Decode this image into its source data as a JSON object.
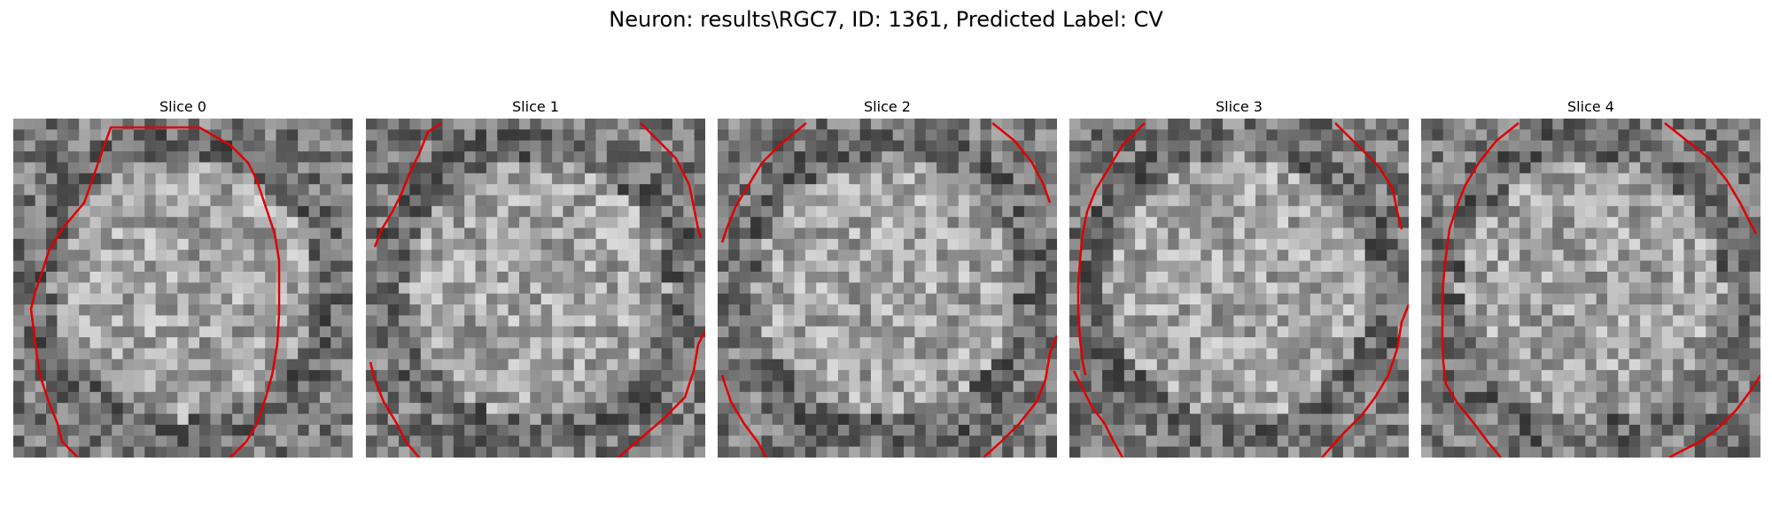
{
  "figure": {
    "title": "Neuron: results\\RGC7, ID: 1361, Predicted Label: CV"
  },
  "panels": [
    {
      "label": "Slice 0"
    },
    {
      "label": "Slice 1"
    },
    {
      "label": "Slice 2"
    },
    {
      "label": "Slice 3"
    },
    {
      "label": "Slice 4"
    }
  ],
  "colors": {
    "contour": "#e00000",
    "background": "#ffffff"
  }
}
